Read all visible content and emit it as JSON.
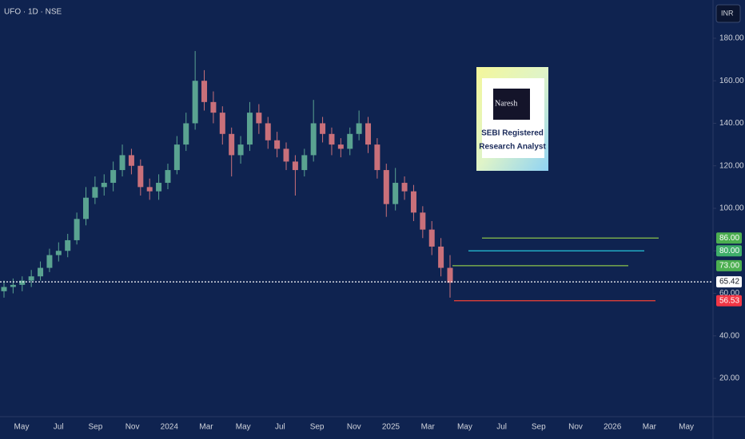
{
  "chart_data": {
    "type": "candlestick",
    "title": "UFO · 1D · NSE",
    "currency": "INR",
    "up_color": "#5aa391",
    "down_color": "#c9707a",
    "open": [
      61,
      63,
      64,
      66,
      68,
      72,
      78,
      80,
      85,
      95,
      105,
      110,
      112,
      118,
      125,
      120,
      110,
      108,
      112,
      118,
      130,
      140,
      160,
      150,
      145,
      135,
      125,
      130,
      145,
      140,
      132,
      128,
      122,
      118,
      125,
      140,
      135,
      130,
      128,
      135,
      140,
      130,
      118,
      102,
      112,
      108,
      98,
      90,
      82,
      72
    ],
    "high": [
      66,
      67,
      68,
      71,
      75,
      81,
      84,
      88,
      98,
      110,
      115,
      116,
      122,
      130,
      128,
      123,
      114,
      116,
      121,
      134,
      145,
      174,
      165,
      155,
      148,
      138,
      134,
      150,
      149,
      143,
      136,
      131,
      125,
      128,
      151,
      143,
      138,
      133,
      138,
      146,
      143,
      133,
      121,
      119,
      115,
      111,
      101,
      94,
      86,
      78
    ],
    "low": [
      58,
      60,
      61,
      63,
      66,
      70,
      75,
      77,
      83,
      92,
      102,
      106,
      108,
      115,
      116,
      106,
      104,
      104,
      109,
      116,
      127,
      137,
      146,
      140,
      130,
      115,
      121,
      127,
      135,
      128,
      124,
      118,
      106,
      115,
      122,
      131,
      125,
      124,
      125,
      132,
      126,
      114,
      96,
      99,
      104,
      94,
      86,
      78,
      68,
      58
    ],
    "close": [
      63,
      64,
      66,
      68,
      72,
      78,
      80,
      85,
      95,
      105,
      110,
      112,
      118,
      125,
      120,
      110,
      108,
      112,
      118,
      130,
      140,
      160,
      150,
      145,
      135,
      125,
      130,
      145,
      140,
      132,
      128,
      122,
      118,
      125,
      140,
      135,
      130,
      128,
      135,
      140,
      130,
      118,
      102,
      112,
      108,
      98,
      90,
      82,
      72,
      65
    ],
    "ylim": [
      2,
      198
    ],
    "yticks": [
      {
        "value": 20,
        "label": "20.00"
      },
      {
        "value": 40,
        "label": "40.00"
      },
      {
        "value": 60,
        "label": "60.00"
      },
      {
        "value": 80,
        "label": "80.00"
      },
      {
        "value": 100,
        "label": "100.00"
      },
      {
        "value": 120,
        "label": "120.00"
      },
      {
        "value": 140,
        "label": "140.00"
      },
      {
        "value": 160,
        "label": "160.00"
      },
      {
        "value": 180,
        "label": "180.00"
      }
    ],
    "x_labels": [
      "May",
      "Jul",
      "Sep",
      "Nov",
      "2024",
      "Mar",
      "May",
      "Jul",
      "Sep",
      "Nov",
      "2025",
      "Mar",
      "May",
      "Jul",
      "Sep",
      "Nov",
      "2026",
      "Mar",
      "May"
    ],
    "levels": [
      {
        "value": 86,
        "label": "86.00",
        "color": "#8bc34a",
        "label_color": "#4caf50"
      },
      {
        "value": 80,
        "label": "80.00",
        "color": "#26c6da",
        "label_color": "#3fae6a"
      },
      {
        "value": 73,
        "label": "73.00",
        "color": "#8bc34a",
        "label_color": "#4caf50"
      },
      {
        "value": 65.42,
        "label": "65.42",
        "color": "#ffffff",
        "label_color": "#ffffff"
      },
      {
        "value": 56.53,
        "label": "56.53",
        "color": "#f44336",
        "label_color": "#f23645"
      }
    ],
    "badge": {
      "brand": "Naresh",
      "line1": "SEBI Registered",
      "line2": "Research Analyst"
    }
  }
}
